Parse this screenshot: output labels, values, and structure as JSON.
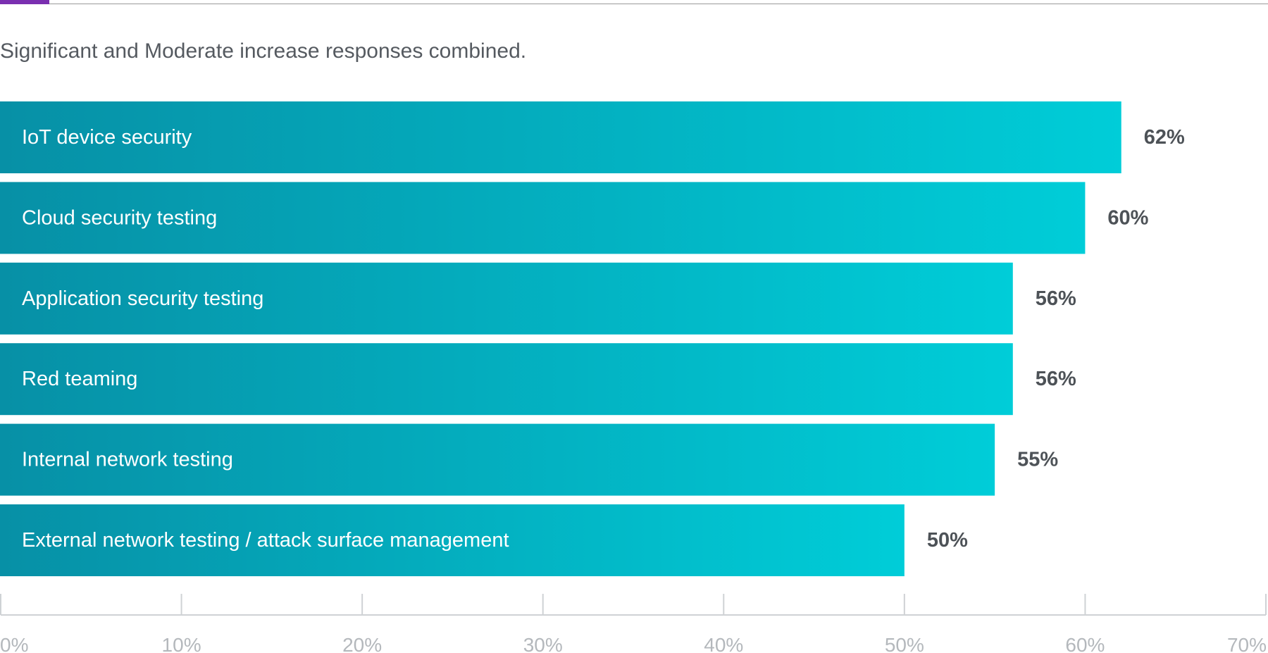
{
  "subtitle": "Significant and Moderate increase responses combined.",
  "colors": {
    "bar_start": "#0790a6",
    "bar_end": "#00cdd8",
    "accent": "#7a2fb0",
    "value_text": "#4d5257",
    "tick_text": "#b4b8bc",
    "axis_line": "#cfd2d5"
  },
  "chart_data": {
    "type": "bar",
    "orientation": "horizontal",
    "categories": [
      "IoT device security",
      "Cloud security testing",
      "Application security testing",
      "Red teaming",
      "Internal network testing",
      "External network testing / attack surface management"
    ],
    "values": [
      62,
      60,
      56,
      56,
      55,
      50
    ],
    "value_labels": [
      "62%",
      "60%",
      "56%",
      "56%",
      "55%",
      "50%"
    ],
    "xlim": [
      0,
      70
    ],
    "ticks": [
      0,
      10,
      20,
      30,
      40,
      50,
      60,
      70
    ],
    "tick_labels": [
      "0%",
      "10%",
      "20%",
      "30%",
      "40%",
      "50%",
      "60%",
      "70%"
    ],
    "grid": false
  }
}
